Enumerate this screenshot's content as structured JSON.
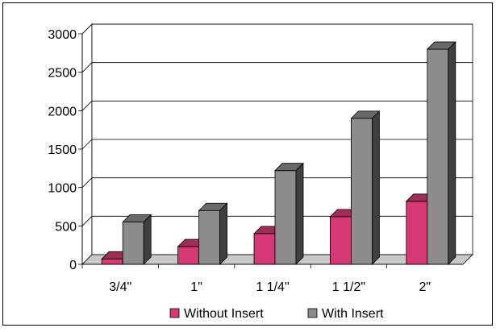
{
  "chart_data": {
    "type": "bar",
    "style": "3d-clustered-column",
    "categories": [
      "3/4\"",
      "1\"",
      "1 1/4\"",
      "1 1/2\"",
      "2\""
    ],
    "series": [
      {
        "name": "Without Insert",
        "color": "#d63a74",
        "values": [
          70,
          230,
          400,
          620,
          820
        ]
      },
      {
        "name": "With Insert",
        "color": "#8c8c8c",
        "values": [
          550,
          700,
          1220,
          1900,
          2800
        ]
      }
    ],
    "title": "",
    "xlabel": "",
    "ylabel": "",
    "ylim": [
      0,
      3000
    ],
    "yticks": [
      0,
      500,
      1000,
      1500,
      2000,
      2500,
      3000
    ],
    "grid": true,
    "legend_position": "bottom"
  }
}
